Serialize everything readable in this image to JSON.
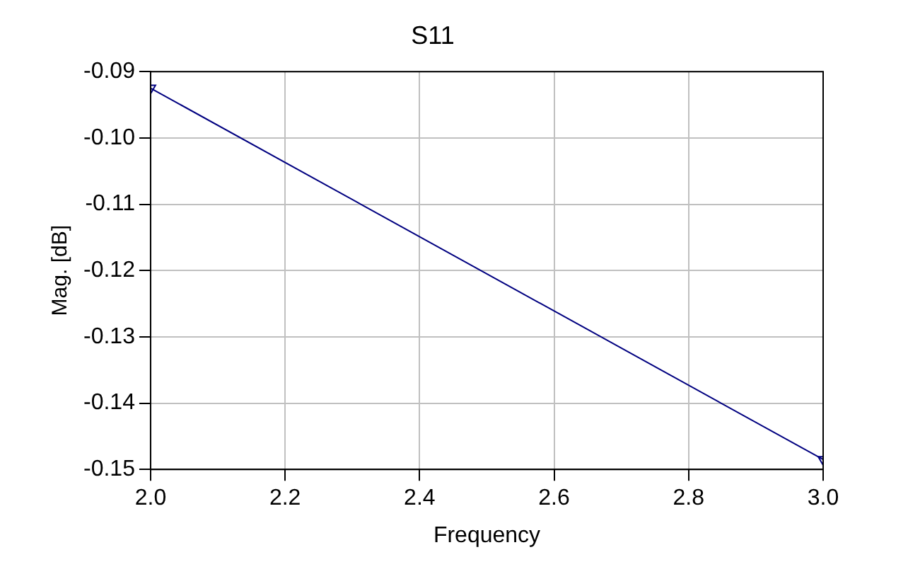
{
  "chart_data": {
    "type": "line",
    "title": "S11",
    "xlabel": "Frequency",
    "ylabel": "Mag. [dB]",
    "x": [
      2.0,
      3.0
    ],
    "series": [
      {
        "color": "#000080",
        "values": [
          -0.0925,
          -0.1485
        ]
      }
    ],
    "xlim": [
      2.0,
      3.0
    ],
    "xticks": [
      {
        "value": 2.0,
        "label": "2.0"
      },
      {
        "value": 2.2,
        "label": "2.2"
      },
      {
        "value": 2.4,
        "label": "2.4"
      },
      {
        "value": 2.6,
        "label": "2.6"
      },
      {
        "value": 2.8,
        "label": "2.8"
      },
      {
        "value": 3.0,
        "label": "3.0"
      }
    ],
    "ylim": [
      -0.15,
      -0.09
    ],
    "yticks": [
      {
        "value": -0.15,
        "label": "-0.15"
      },
      {
        "value": -0.14,
        "label": "-0.14"
      },
      {
        "value": -0.13,
        "label": "-0.13"
      },
      {
        "value": -0.12,
        "label": "-0.12"
      },
      {
        "value": -0.11,
        "label": "-0.11"
      },
      {
        "value": -0.1,
        "label": "-0.10"
      },
      {
        "value": -0.09,
        "label": "-0.09"
      }
    ],
    "grid": true,
    "legend": false,
    "marker": "triangle-down",
    "line_style": "solid"
  }
}
